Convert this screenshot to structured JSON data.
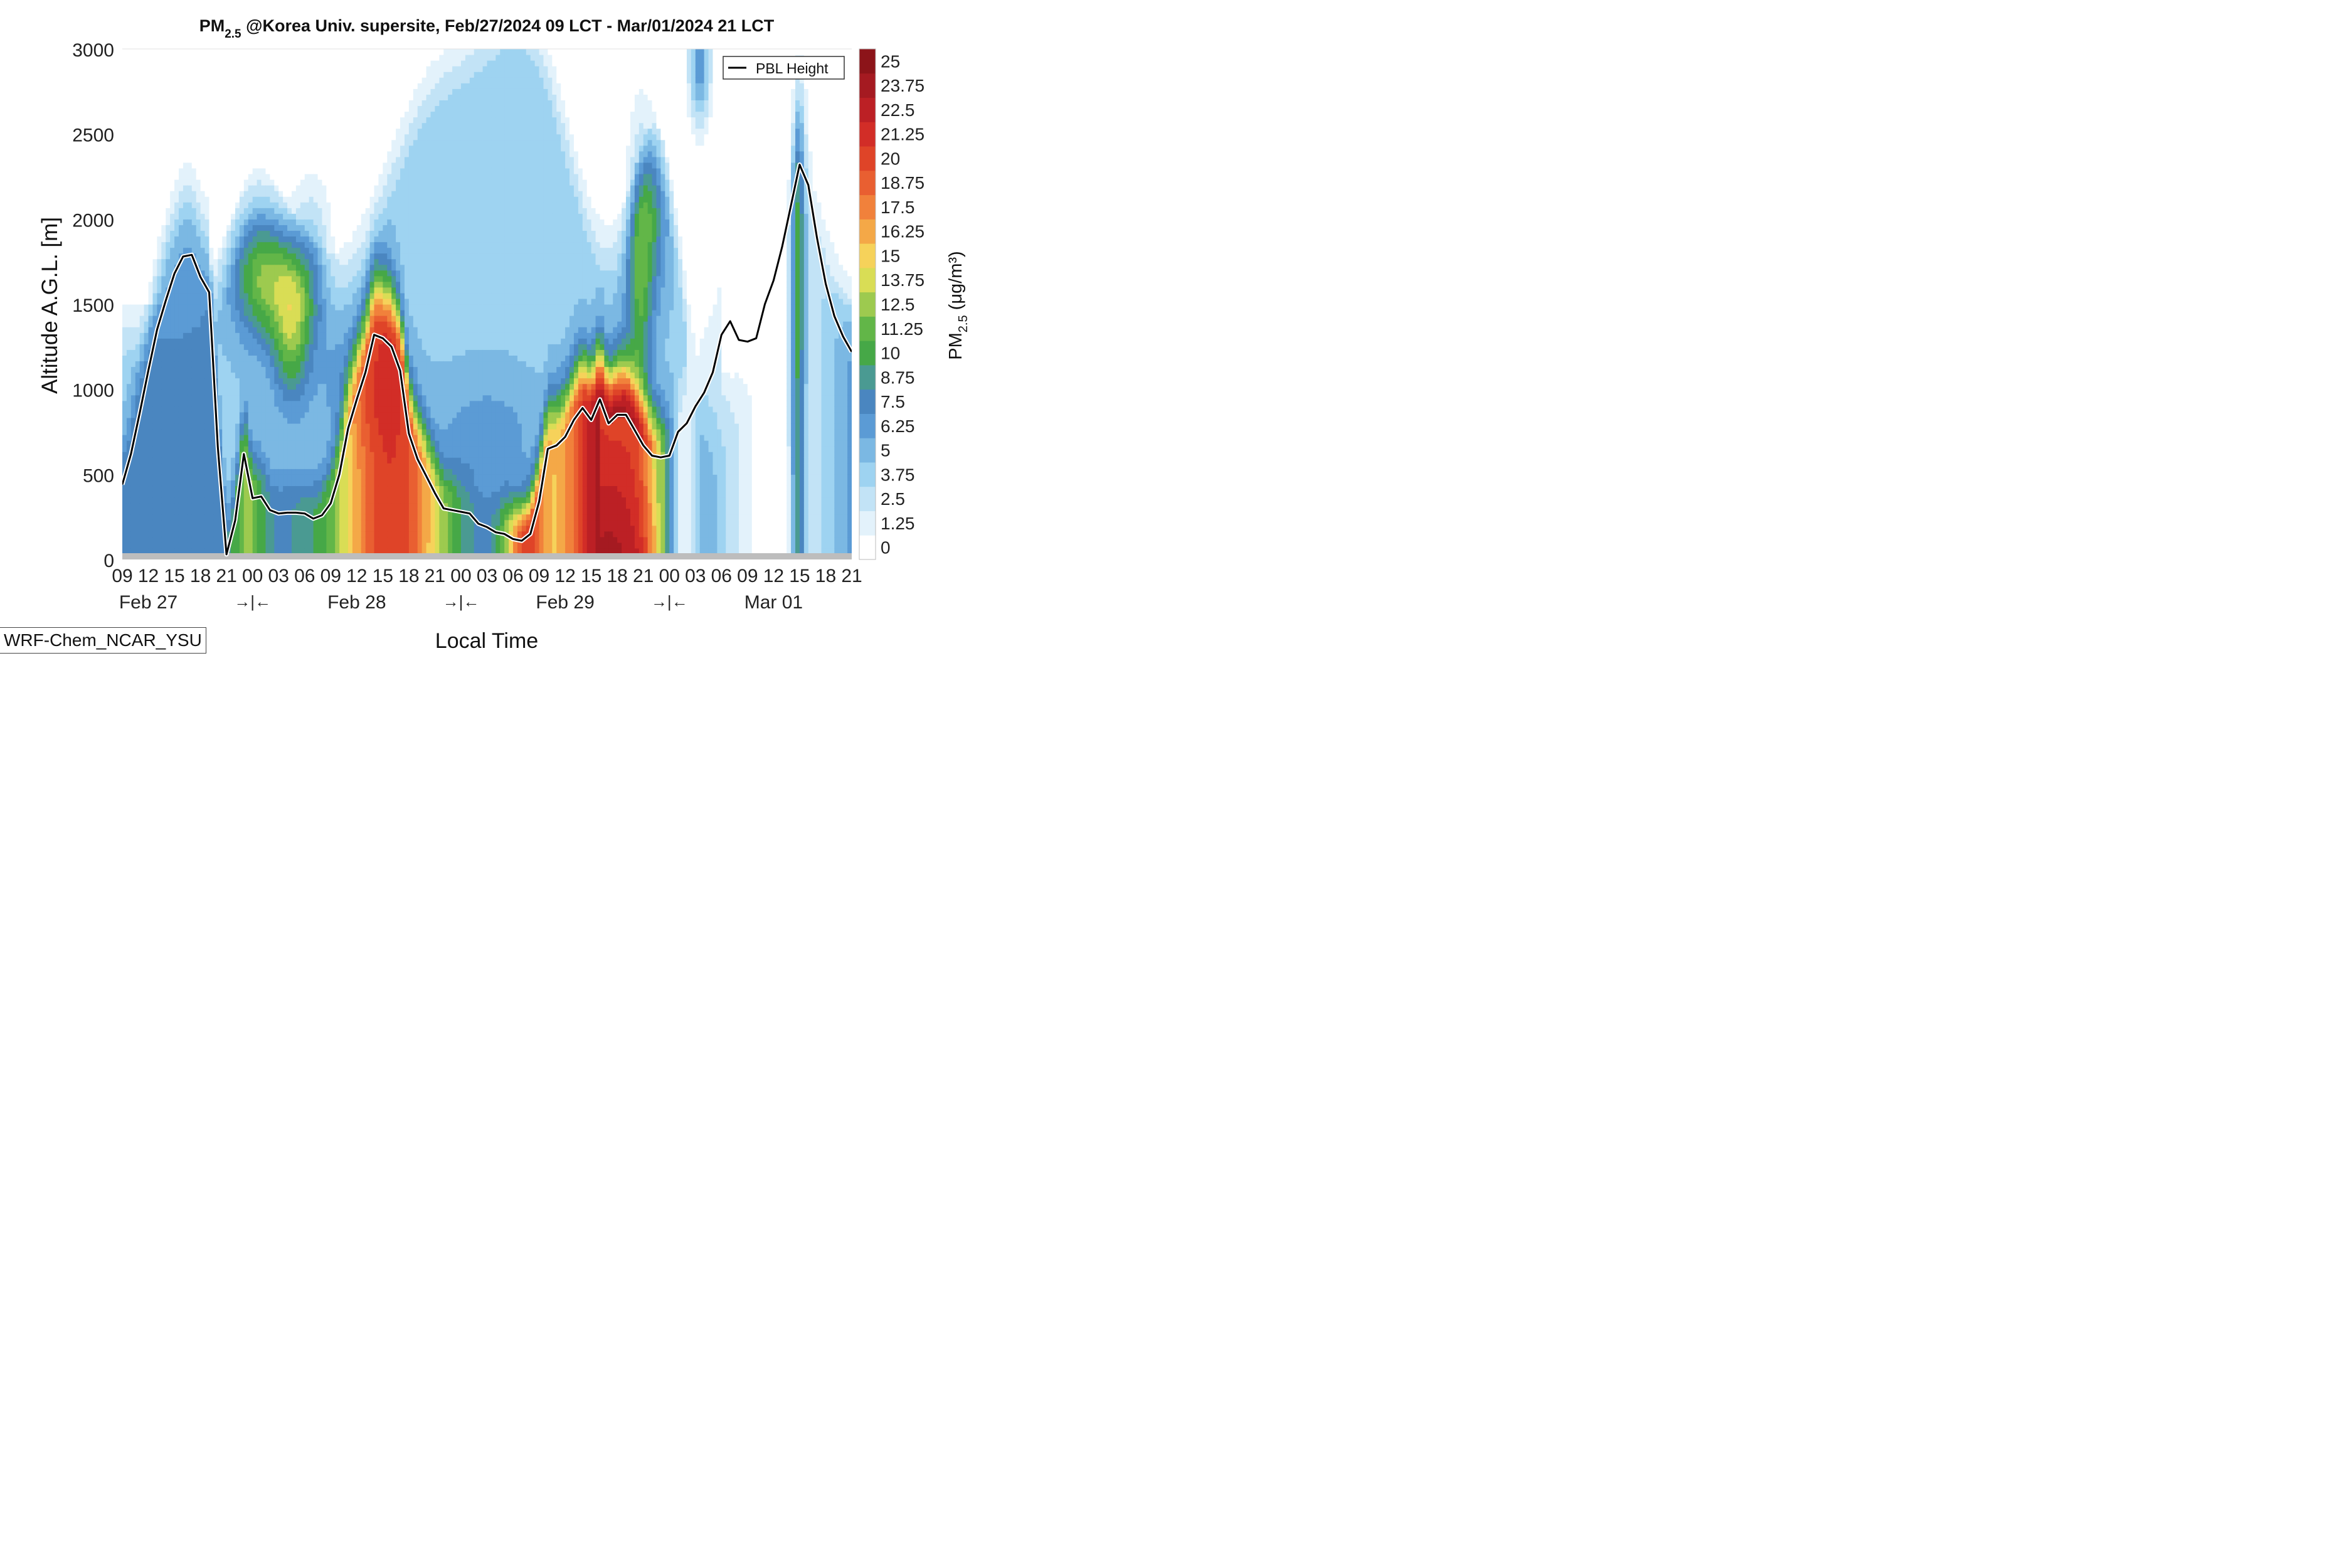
{
  "chart_data": {
    "type": "heatmap",
    "title_main": "PM",
    "title_sub": "2.5",
    "title_rest": " @Korea Univ. supersite, Feb/27/2024 09 LCT - Mar/01/2024 21 LCT",
    "xlabel": "Local Time",
    "ylabel": "Altitude A.G.L. [m]",
    "ylim": [
      0,
      3000
    ],
    "y_ticks": [
      "0",
      "500",
      "1000",
      "1500",
      "2000",
      "2500",
      "3000"
    ],
    "x_hours": [
      0,
      3,
      6,
      9,
      12,
      15,
      18,
      21,
      24,
      27,
      30,
      33,
      36,
      39,
      42,
      45,
      48,
      51,
      54,
      57,
      60,
      63,
      66,
      69,
      72,
      75,
      78,
      81,
      84
    ],
    "x_tick_labels": [
      "09",
      "12",
      "15",
      "18",
      "21",
      "00",
      "03",
      "06",
      "09",
      "12",
      "15",
      "18",
      "21",
      "00",
      "03",
      "06",
      "09",
      "12",
      "15",
      "18",
      "21",
      "00",
      "03",
      "06",
      "09",
      "12",
      "15",
      "18",
      "21"
    ],
    "date_labels": [
      {
        "hour": 3,
        "text": "Feb 27"
      },
      {
        "hour": 27,
        "text": "Feb 28"
      },
      {
        "hour": 51,
        "text": "Feb 29"
      },
      {
        "hour": 75,
        "text": "Mar 01"
      }
    ],
    "day_boundary_markers": [
      {
        "hour": 15,
        "text": "→|←"
      },
      {
        "hour": 39,
        "text": "→|←"
      },
      {
        "hour": 63,
        "text": "→|←"
      }
    ],
    "colorbar_label_main": "PM",
    "colorbar_label_sub": "2.5",
    "colorbar_label_units": " (μg/m³)",
    "colorbar_levels": [
      "0",
      "1.25",
      "2.5",
      "3.75",
      "5",
      "6.25",
      "7.5",
      "8.75",
      "10",
      "11.25",
      "12.5",
      "13.75",
      "15",
      "16.25",
      "17.5",
      "18.75",
      "20",
      "21.25",
      "22.5",
      "23.75",
      "25"
    ],
    "colorbar_colors": [
      "#ffffff",
      "#e3f2fb",
      "#c2e3f6",
      "#9ed3f1",
      "#7bb8e3",
      "#5b9bd5",
      "#4a86c0",
      "#4a9a92",
      "#46a847",
      "#62b648",
      "#9dca4f",
      "#d9dd55",
      "#f6d25a",
      "#f4a847",
      "#f1813b",
      "#e95f31",
      "#df4428",
      "#d22d27",
      "#bc2025",
      "#a51a21",
      "#8c1419"
    ],
    "series": [
      {
        "name": "PBL Height",
        "x": [
          0,
          1,
          2,
          3,
          4,
          5,
          6,
          7,
          8,
          9,
          10,
          11,
          12,
          13,
          14,
          15,
          16,
          17,
          18,
          19,
          20,
          21,
          22,
          23,
          24,
          25,
          26,
          27,
          28,
          29,
          30,
          31,
          32,
          33,
          34,
          35,
          36,
          37,
          38,
          39,
          40,
          41,
          42,
          43,
          44,
          45,
          46,
          47,
          48,
          49,
          50,
          51,
          52,
          53,
          54,
          55,
          56,
          57,
          58,
          59,
          60,
          61,
          62,
          63,
          64,
          65,
          66,
          67,
          68,
          69,
          70,
          71,
          72,
          73,
          74,
          75,
          76,
          77,
          78,
          79,
          80,
          81,
          82,
          83,
          84
        ],
        "y": [
          440,
          620,
          860,
          1110,
          1350,
          1520,
          1680,
          1780,
          1790,
          1660,
          1570,
          660,
          30,
          230,
          620,
          360,
          370,
          290,
          270,
          275,
          275,
          270,
          240,
          260,
          330,
          500,
          770,
          940,
          1100,
          1320,
          1300,
          1250,
          1110,
          740,
          590,
          490,
          390,
          300,
          290,
          280,
          270,
          210,
          190,
          160,
          150,
          120,
          110,
          150,
          340,
          650,
          670,
          720,
          820,
          890,
          820,
          940,
          800,
          850,
          850,
          760,
          670,
          610,
          600,
          610,
          750,
          800,
          900,
          980,
          1100,
          1320,
          1400,
          1290,
          1280,
          1300,
          1500,
          1640,
          1840,
          2080,
          2320,
          2200,
          1890,
          1620,
          1430,
          1310,
          1220
        ]
      }
    ],
    "legend": {
      "placement": "top-right"
    },
    "model_label": "WRF-Chem_NCAR_YSU"
  }
}
